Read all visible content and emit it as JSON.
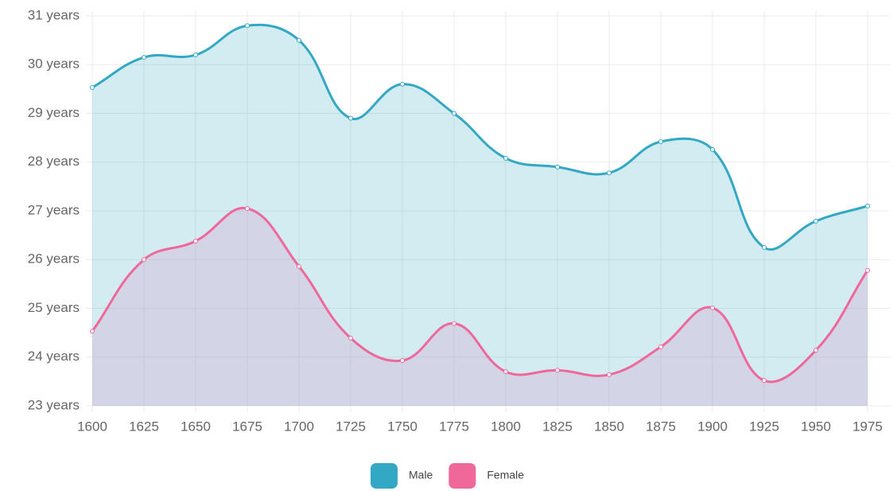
{
  "chart_data": {
    "type": "line",
    "x": [
      1600,
      1625,
      1650,
      1675,
      1700,
      1725,
      1750,
      1775,
      1800,
      1825,
      1850,
      1875,
      1900,
      1925,
      1950,
      1975
    ],
    "xlim": [
      1600,
      1975
    ],
    "xticks": [
      1600,
      1625,
      1650,
      1675,
      1700,
      1725,
      1750,
      1775,
      1800,
      1825,
      1850,
      1875,
      1900,
      1925,
      1950,
      1975
    ],
    "ylim": [
      23,
      31
    ],
    "yticks": [
      {
        "value": 23,
        "label": "23 years"
      },
      {
        "value": 24,
        "label": "24 years"
      },
      {
        "value": 25,
        "label": "25 years"
      },
      {
        "value": 26,
        "label": "26 years"
      },
      {
        "value": 27,
        "label": "27 years"
      },
      {
        "value": 28,
        "label": "28 years"
      },
      {
        "value": 29,
        "label": "29 years"
      },
      {
        "value": 30,
        "label": "30 years"
      },
      {
        "value": 31,
        "label": "31 years"
      }
    ],
    "grid": true,
    "legend": "bottom",
    "area": true,
    "series": [
      {
        "name": "Male",
        "color": "#33a8c5",
        "fill": "rgba(51,168,197,0.22)",
        "values": [
          29.53,
          30.15,
          30.2,
          30.8,
          30.5,
          28.9,
          29.6,
          29.0,
          28.08,
          27.9,
          27.78,
          28.42,
          28.26,
          26.25,
          26.79,
          27.1
        ]
      },
      {
        "name": "Female",
        "color": "#f0679a",
        "fill": "rgba(214,150,200,0.28)",
        "values": [
          24.53,
          26.0,
          26.38,
          27.05,
          25.86,
          24.39,
          23.93,
          24.69,
          23.7,
          23.73,
          23.64,
          24.21,
          25.01,
          23.52,
          24.14,
          25.78
        ]
      }
    ]
  }
}
